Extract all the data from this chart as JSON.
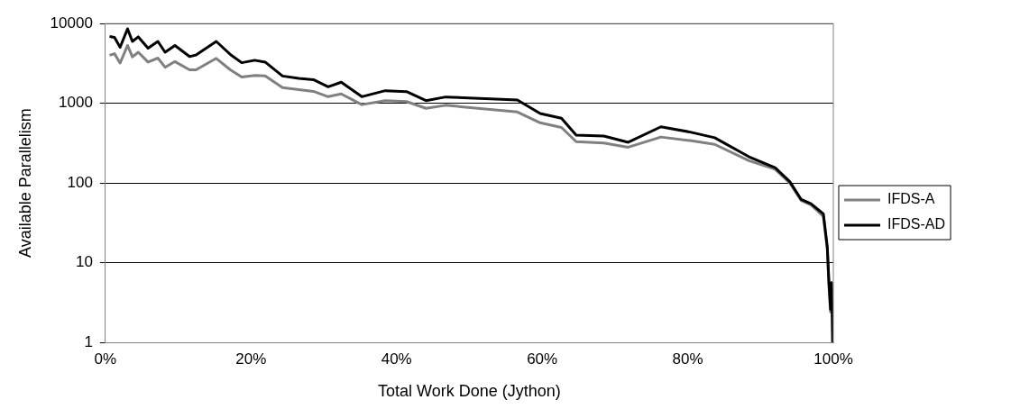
{
  "chart_data": {
    "type": "line",
    "xlabel": "Total Work Done (Jython)",
    "ylabel": "Available Parallelism",
    "x": [
      0.58,
      1.25,
      2.02,
      3.04,
      3.71,
      4.52,
      5.86,
      7.21,
      8.2,
      9.55,
      11.56,
      12.45,
      15.23,
      17.16,
      18.73,
      20.52,
      21.95,
      24.33,
      26.57,
      28.58,
      30.6,
      32.4,
      35.22,
      38.45,
      41.36,
      44.04,
      46.73,
      56.6,
      59.73,
      62.65,
      64.67,
      68.47,
      71.83,
      76.31,
      80.34,
      83.7,
      88.41,
      92,
      94.02,
      95.59,
      96.93,
      98.63,
      99.17,
      99.4,
      99.62,
      99.76,
      99.9
    ],
    "series": [
      {
        "name": "IFDS-A",
        "color": "#808080",
        "values": [
          4000,
          4190,
          3200,
          5320,
          3820,
          4370,
          3290,
          3690,
          2830,
          3340,
          2630,
          2630,
          3660,
          2630,
          2140,
          2240,
          2200,
          1570,
          1480,
          1410,
          1210,
          1310,
          962,
          1080,
          1050,
          865,
          944,
          777,
          569,
          497,
          330,
          318,
          281,
          377,
          340,
          305,
          190,
          149,
          100,
          60,
          53,
          38,
          15,
          5,
          2.4,
          5,
          null
        ]
      },
      {
        "name": "IFDS-AD",
        "color": "#000000",
        "values": [
          6880,
          6700,
          5040,
          8610,
          5970,
          6820,
          4910,
          5970,
          4370,
          5320,
          3860,
          4030,
          5970,
          4100,
          3230,
          3470,
          3290,
          2200,
          2050,
          1980,
          1610,
          1840,
          1210,
          1440,
          1400,
          1080,
          1200,
          1100,
          743,
          650,
          398,
          388,
          324,
          507,
          435,
          370,
          213,
          156,
          104,
          62,
          55,
          41,
          15.7,
          5.6,
          2.6,
          5.6,
          1
        ]
      }
    ],
    "xlim": [
      0,
      100
    ],
    "xticks": [
      {
        "value": 0,
        "label": "0%"
      },
      {
        "value": 20,
        "label": "20%"
      },
      {
        "value": 40,
        "label": "40%"
      },
      {
        "value": 60,
        "label": "60%"
      },
      {
        "value": 80,
        "label": "80%"
      },
      {
        "value": 100,
        "label": "100%"
      }
    ],
    "ylim": [
      1,
      10000
    ],
    "yticks": [
      1,
      10,
      100,
      1000,
      10000
    ],
    "log": "y",
    "grid": "y",
    "legend": "right",
    "marker": "none",
    "line_style": "solid"
  }
}
